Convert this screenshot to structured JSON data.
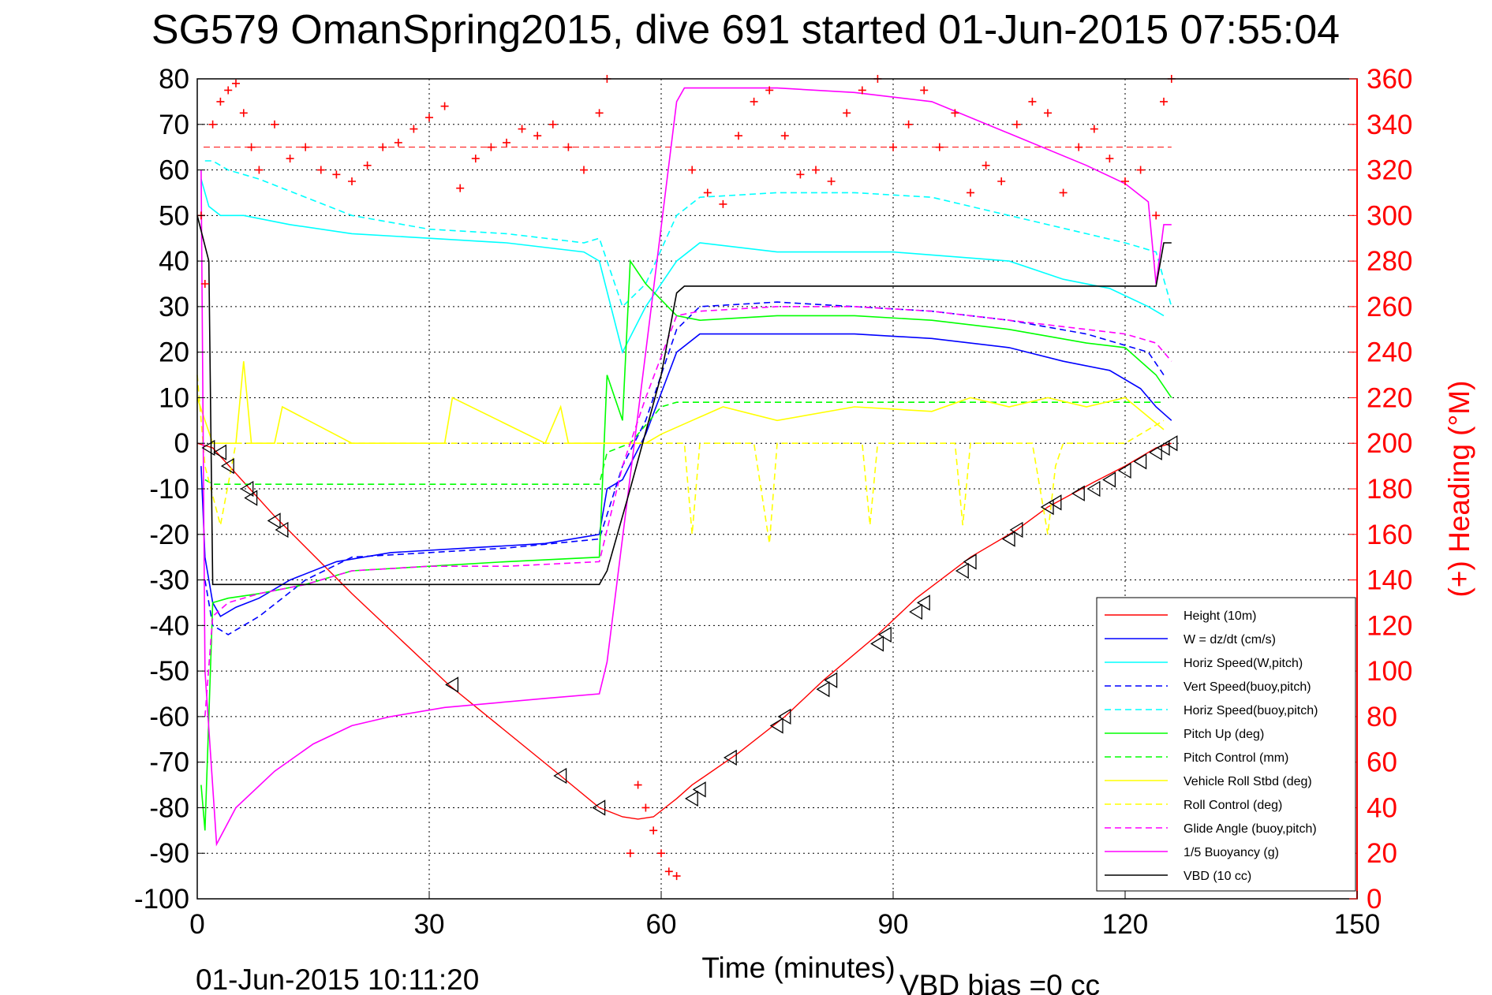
{
  "chart_data": {
    "type": "line",
    "title": "SG579 OmanSpring2015, dive 691 started 01-Jun-2015 07:55:04",
    "xlabel": "Time (minutes)",
    "ylabel_right": "(+) Heading (°M)",
    "footer_left": "01-Jun-2015 10:11:20",
    "footer_right": "VBD bias =0 cc",
    "xlim": [
      0,
      150
    ],
    "ylim_left": [
      -100,
      80
    ],
    "ylim_right": [
      0,
      360
    ],
    "x_ticks": [
      "0",
      "30",
      "60",
      "90",
      "120",
      "150"
    ],
    "y_ticks_left": [
      "80",
      "70",
      "60",
      "50",
      "40",
      "30",
      "20",
      "10",
      "0",
      "-10",
      "-20",
      "-30",
      "-40",
      "-50",
      "-60",
      "-70",
      "-80",
      "-90",
      "-100"
    ],
    "y_ticks_right": [
      "360",
      "340",
      "320",
      "300",
      "280",
      "260",
      "240",
      "220",
      "200",
      "180",
      "160",
      "140",
      "120",
      "100",
      "80",
      "60",
      "40",
      "20",
      "0"
    ],
    "grid": true,
    "legend_position": "lower-right",
    "series": [
      {
        "name": "Height (10m)",
        "color": "#ff0000",
        "style": "solid",
        "x": [
          0,
          2,
          10,
          20,
          32.5,
          47,
          52,
          55,
          57,
          59,
          62,
          64,
          70,
          76,
          81,
          88,
          93,
          100,
          106,
          110,
          116,
          120,
          124,
          126
        ],
        "y": [
          0,
          -1,
          -16,
          -33,
          -53,
          -73,
          -80,
          -82,
          -82.5,
          -82,
          -78,
          -75,
          -68,
          -60,
          -52,
          -42,
          -34,
          -25,
          -19,
          -14,
          -8.5,
          -5,
          -1,
          0
        ]
      },
      {
        "name": "W = dz/dt (cm/s)",
        "color": "#0000ff",
        "style": "solid",
        "x": [
          0.5,
          1,
          2,
          3,
          5,
          8,
          12,
          18,
          25,
          35,
          45,
          52,
          53,
          55,
          58,
          62,
          65,
          75,
          85,
          95,
          105,
          112,
          118,
          122,
          124,
          126
        ],
        "y": [
          -5,
          -25,
          -35,
          -38,
          -36,
          -34,
          -30,
          -26,
          -24,
          -23,
          -22,
          -20,
          -10,
          -8,
          2,
          20,
          24,
          24,
          24,
          23,
          21,
          18,
          16,
          12,
          8,
          5
        ]
      },
      {
        "name": "Horiz Speed(W,pitch)",
        "color": "#00ffff",
        "style": "solid",
        "x": [
          0.5,
          1.5,
          3,
          6,
          12,
          20,
          30,
          40,
          50,
          52,
          55,
          58,
          62,
          65,
          75,
          90,
          105,
          112,
          118,
          123,
          125
        ],
        "y": [
          58,
          52,
          50,
          50,
          48,
          46,
          45,
          44,
          42,
          40,
          20,
          30,
          40,
          44,
          42,
          42,
          40,
          36,
          34,
          30,
          28
        ]
      },
      {
        "name": "Vert Speed(buoy,pitch)",
        "color": "#0000ff",
        "style": "dashed",
        "x": [
          1,
          2,
          4,
          8,
          14,
          20,
          30,
          40,
          52,
          55,
          58,
          62,
          65,
          75,
          85,
          95,
          105,
          115,
          123,
          125
        ],
        "y": [
          -30,
          -40,
          -42,
          -38,
          -30,
          -25,
          -24,
          -23,
          -21,
          -5,
          5,
          25,
          30,
          31,
          30,
          29,
          27,
          24,
          20,
          15
        ]
      },
      {
        "name": "Horiz Speed(buoy,pitch)",
        "color": "#00ffff",
        "style": "dashed",
        "x": [
          1,
          2,
          4,
          8,
          14,
          20,
          30,
          40,
          50,
          52,
          55,
          58,
          62,
          65,
          75,
          85,
          95,
          105,
          115,
          120,
          124,
          126
        ],
        "y": [
          62,
          62,
          60,
          58,
          54,
          50,
          47,
          46,
          44,
          45,
          30,
          35,
          50,
          54,
          55,
          55,
          54,
          50,
          46,
          44,
          42,
          30
        ]
      },
      {
        "name": "Pitch Up (deg)",
        "color": "#00ff00",
        "style": "solid",
        "x": [
          0.5,
          1,
          2,
          4,
          8,
          14,
          20,
          30,
          40,
          52,
          53,
          55,
          56,
          58,
          62,
          65,
          75,
          85,
          95,
          105,
          115,
          120,
          124,
          126
        ],
        "y": [
          -75,
          -85,
          -35,
          -34,
          -33,
          -31,
          -28,
          -27,
          -26,
          -25,
          15,
          5,
          40,
          35,
          28,
          27,
          28,
          28,
          27,
          25,
          22,
          21,
          15,
          10
        ]
      },
      {
        "name": "Pitch Control (mm)",
        "color": "#00ff00",
        "style": "dashed",
        "x": [
          1,
          2,
          10,
          50,
          52,
          53,
          56,
          60,
          62,
          125
        ],
        "y": [
          -8,
          -9,
          -9,
          -9,
          -9,
          -2,
          0,
          8,
          9,
          9
        ]
      },
      {
        "name": "Vehicle Roll Stbd (deg)",
        "color": "#ffff00",
        "style": "solid",
        "x": [
          0,
          2,
          5,
          6,
          7,
          10,
          11,
          20,
          32,
          33,
          45,
          47,
          48,
          52,
          58,
          60,
          64,
          68,
          75,
          85,
          95,
          100,
          105,
          110,
          115,
          120,
          125
        ],
        "y": [
          10,
          0,
          0,
          18,
          0,
          0,
          8,
          0,
          0,
          10,
          0,
          8,
          0,
          0,
          0,
          2,
          5,
          8,
          5,
          8,
          7,
          10,
          8,
          10,
          8,
          10,
          3
        ]
      },
      {
        "name": "Roll Control (deg)",
        "color": "#ffff00",
        "style": "dashed",
        "x": [
          0,
          1,
          3,
          5,
          10,
          50,
          55,
          60,
          63,
          64,
          65,
          66,
          72,
          74,
          75,
          80,
          86,
          87,
          88,
          95,
          98,
          99,
          100,
          108,
          110,
          111,
          112,
          120,
          125
        ],
        "y": [
          15,
          -5,
          -18,
          0,
          0,
          0,
          0,
          0,
          0,
          -20,
          0,
          0,
          0,
          -22,
          0,
          0,
          0,
          -18,
          0,
          0,
          0,
          -18,
          0,
          0,
          -20,
          -5,
          0,
          0,
          5
        ]
      },
      {
        "name": "Glide Angle (buoy,pitch)",
        "color": "#ff00ff",
        "style": "dashed",
        "x": [
          1,
          2,
          4,
          8,
          14,
          20,
          30,
          40,
          52,
          55,
          58,
          62,
          65,
          75,
          85,
          95,
          105,
          115,
          120,
          124,
          126
        ],
        "y": [
          -60,
          -38,
          -35,
          -33,
          -31,
          -28,
          -27,
          -27,
          -26,
          -5,
          10,
          28,
          29,
          30,
          30,
          29,
          27,
          25,
          24,
          22,
          18
        ]
      },
      {
        "name": "1/5 Buoyancy (g)",
        "color": "#ff00ff",
        "style": "solid",
        "x": [
          0.5,
          1,
          2.5,
          5,
          10,
          15,
          20,
          25,
          32,
          45,
          52,
          53,
          58,
          62,
          63,
          75,
          85,
          95,
          105,
          115,
          120,
          123,
          124,
          125,
          126
        ],
        "y": [
          60,
          -50,
          -88,
          -80,
          -72,
          -66,
          -62,
          -60,
          -58,
          -56,
          -55,
          -48,
          20,
          75,
          78,
          78,
          77,
          75,
          68,
          61,
          57,
          53,
          35,
          48,
          48
        ]
      },
      {
        "name": "VBD (10 cc)",
        "color": "#000000",
        "style": "solid",
        "x": [
          0,
          1.5,
          2,
          52,
          53,
          56,
          60,
          62,
          63,
          124,
          125,
          126
        ],
        "y": [
          50,
          40,
          -31,
          -31,
          -28,
          -10,
          15,
          33,
          34.5,
          34.5,
          44,
          44
        ]
      }
    ],
    "heading": {
      "name": "(+) Heading",
      "color": "#ff0000",
      "axis": "right",
      "reference_line": 330,
      "x": [
        0.5,
        1,
        2,
        3,
        4,
        5,
        6,
        7,
        8,
        10,
        12,
        14,
        16,
        18,
        20,
        22,
        24,
        26,
        28,
        30,
        32,
        34,
        36,
        38,
        40,
        42,
        44,
        46,
        48,
        50,
        52,
        53,
        56,
        57,
        58,
        59,
        60,
        61,
        62,
        64,
        66,
        68,
        70,
        72,
        74,
        76,
        78,
        80,
        82,
        84,
        86,
        88,
        90,
        92,
        94,
        96,
        98,
        100,
        102,
        104,
        106,
        108,
        110,
        112,
        114,
        116,
        118,
        120,
        122,
        124,
        125,
        126
      ],
      "y": [
        300,
        270,
        340,
        350,
        355,
        358,
        345,
        330,
        320,
        340,
        325,
        330,
        320,
        318,
        315,
        322,
        330,
        332,
        338,
        343,
        348,
        312,
        325,
        330,
        332,
        338,
        335,
        340,
        330,
        320,
        345,
        360,
        20,
        50,
        40,
        30,
        20,
        12,
        10,
        320,
        310,
        305,
        335,
        350,
        355,
        335,
        318,
        320,
        315,
        345,
        355,
        360,
        330,
        340,
        355,
        330,
        345,
        310,
        322,
        315,
        340,
        350,
        345,
        310,
        330,
        338,
        325,
        315,
        320,
        300,
        350,
        360
      ]
    },
    "markers": {
      "name": "Height markers",
      "color": "#000000",
      "x": [
        1.5,
        3,
        4,
        6.5,
        7,
        10,
        11,
        33,
        47,
        52,
        64,
        65,
        69,
        75,
        76,
        81,
        82,
        88,
        89,
        93,
        94,
        99,
        100,
        105,
        106,
        110,
        111,
        114,
        116,
        118,
        120,
        122,
        124,
        125,
        126
      ],
      "y": [
        -1,
        -2,
        -5,
        -10,
        -12,
        -17,
        -19,
        -53,
        -73,
        -80,
        -78,
        -76,
        -69,
        -62,
        -60,
        -54,
        -52,
        -44,
        -42,
        -37,
        -35,
        -28,
        -26,
        -21,
        -19,
        -14,
        -13,
        -11,
        -10,
        -8,
        -6,
        -4,
        -2,
        -1,
        0
      ]
    }
  }
}
